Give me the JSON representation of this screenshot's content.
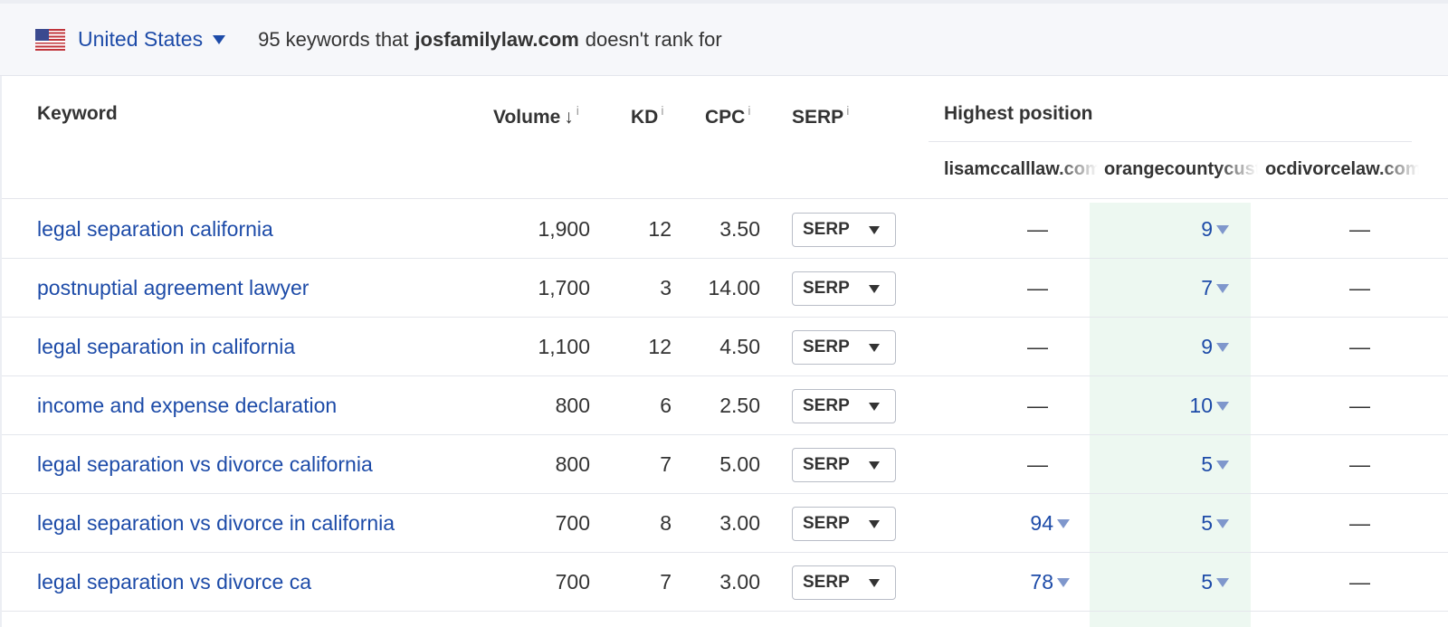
{
  "topbar": {
    "country": "United States",
    "summary_prefix": "95 keywords that",
    "domain": "josfamilylaw.com",
    "summary_suffix": "doesn't rank for",
    "flag_icon": "us-flag-icon"
  },
  "table": {
    "headers": {
      "keyword": "Keyword",
      "volume": "Volume",
      "sort_arrow": "↓",
      "kd": "KD",
      "cpc": "CPC",
      "serp": "SERP",
      "info": "i",
      "highest_position": "Highest position"
    },
    "sites": [
      "lisamccalllaw.com",
      "orangecountycustodylawyer.com",
      "ocdivorcelaw.com"
    ],
    "highlight_color": "#edf8f1",
    "link_color": "#1d4ba8",
    "serp_label": "SERP",
    "rows": [
      {
        "keyword": "legal separation california",
        "volume": "1,900",
        "kd": "12",
        "cpc": "3.50",
        "positions": [
          "—",
          "9",
          "—"
        ]
      },
      {
        "keyword": "postnuptial agreement lawyer",
        "volume": "1,700",
        "kd": "3",
        "cpc": "14.00",
        "positions": [
          "—",
          "7",
          "—"
        ]
      },
      {
        "keyword": "legal separation in california",
        "volume": "1,100",
        "kd": "12",
        "cpc": "4.50",
        "positions": [
          "—",
          "9",
          "—"
        ]
      },
      {
        "keyword": "income and expense declaration",
        "volume": "800",
        "kd": "6",
        "cpc": "2.50",
        "positions": [
          "—",
          "10",
          "—"
        ]
      },
      {
        "keyword": "legal separation vs divorce california",
        "volume": "800",
        "kd": "7",
        "cpc": "5.00",
        "positions": [
          "—",
          "5",
          "—"
        ]
      },
      {
        "keyword": "legal separation vs divorce in california",
        "volume": "700",
        "kd": "8",
        "cpc": "3.00",
        "positions": [
          "94",
          "5",
          "—"
        ]
      },
      {
        "keyword": "legal separation vs divorce ca",
        "volume": "700",
        "kd": "7",
        "cpc": "3.00",
        "positions": [
          "78",
          "5",
          "—"
        ]
      }
    ]
  }
}
